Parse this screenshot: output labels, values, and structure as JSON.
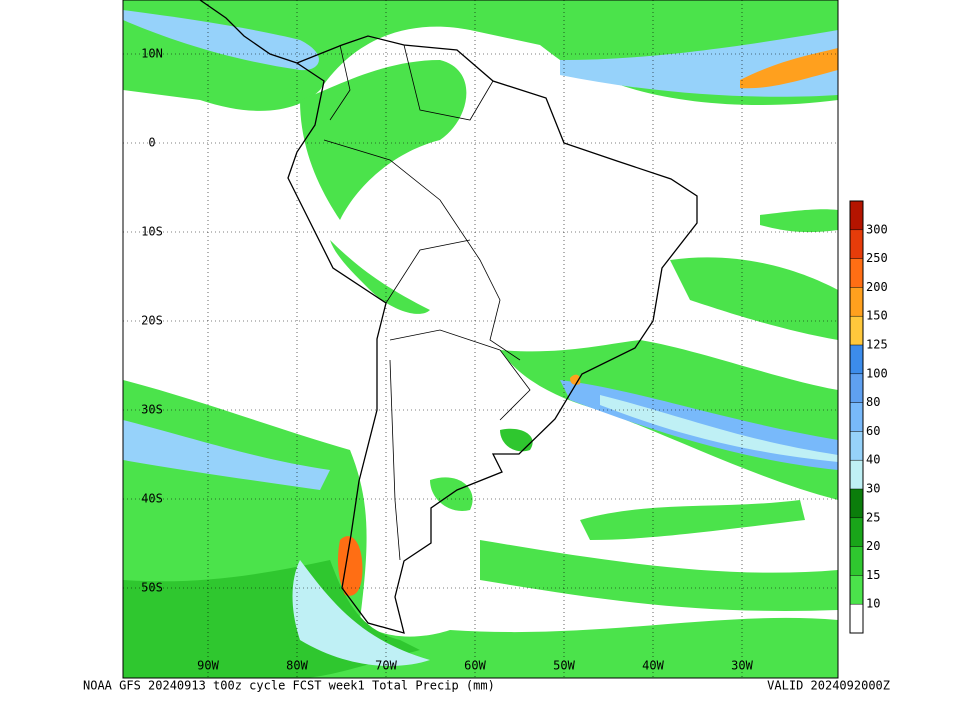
{
  "map": {
    "lat_labels": [
      "10N",
      "0",
      "10S",
      "20S",
      "30S",
      "40S",
      "50S"
    ],
    "lon_labels": [
      "90W",
      "80W",
      "70W",
      "60W",
      "50W",
      "40W",
      "30W"
    ]
  },
  "colorbar": {
    "levels": [
      10,
      15,
      20,
      25,
      30,
      40,
      60,
      80,
      100,
      125,
      150,
      200,
      250,
      300
    ],
    "colors": [
      "#ffffff",
      "#4be34b",
      "#2fc72f",
      "#19a519",
      "#0b7d0b",
      "#bff0f5",
      "#96d2fa",
      "#78b9fa",
      "#5fa0f0",
      "#3c8ceb",
      "#ffc83c",
      "#ffa01e",
      "#ff6e14",
      "#e63c0a",
      "#b41400"
    ]
  },
  "footer": {
    "left": "NOAA GFS 20240913 t00z cycle FCST week1 Total Precip (mm)",
    "right": "VALID 2024092000Z"
  }
}
